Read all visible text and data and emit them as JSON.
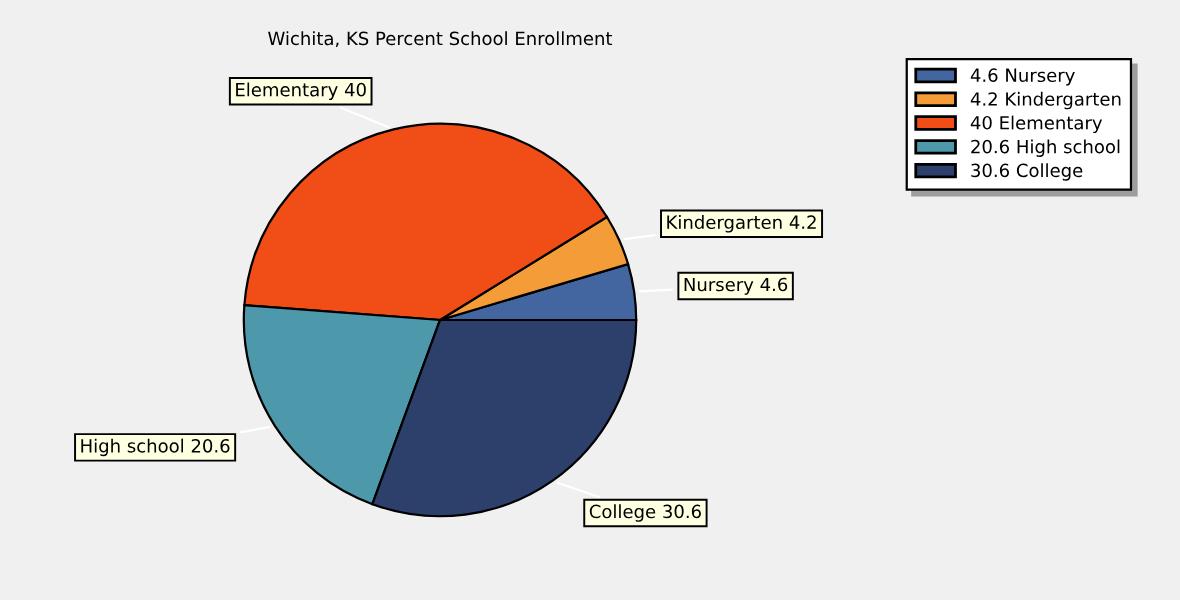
{
  "chart_data": {
    "type": "pie",
    "title": "Wichita, KS Percent School Enrollment",
    "categories": [
      "4.6 Nursery",
      "4.2 Kindergarten",
      "40 Elementary",
      "20.6 High school",
      "30.6 College"
    ],
    "values": [
      4.6,
      4.2,
      40,
      20.6,
      30.6
    ],
    "value_labels": [
      "Nursery 4.6",
      "Kindergarten 4.2",
      "Elementary 40",
      "High school 20.6",
      "College 30.6"
    ],
    "colors": [
      "#4466a0",
      "#f39c38",
      "#f04e16",
      "#4d98aa",
      "#2d406c"
    ],
    "legend": "top right"
  }
}
